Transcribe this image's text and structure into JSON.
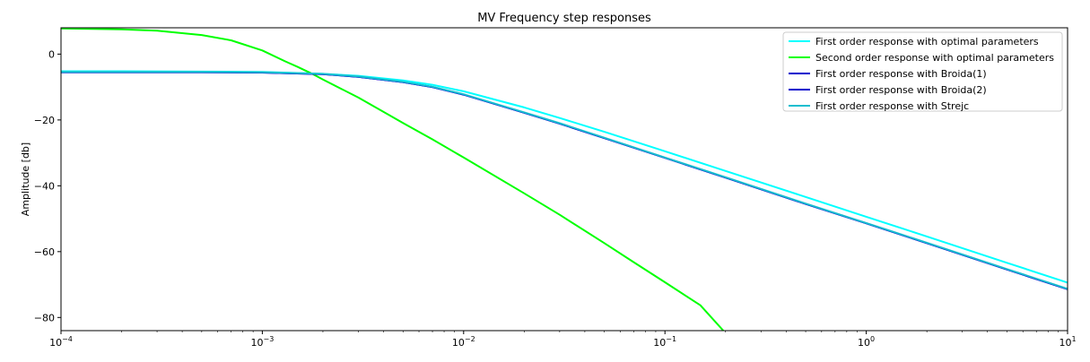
{
  "chart_data": {
    "type": "line",
    "title": "MV Frequency step responses",
    "xlabel": "",
    "ylabel": "Amplitude [db]",
    "xscale": "log",
    "xlim": [
      0.0001,
      10
    ],
    "ylim": [
      -84,
      8
    ],
    "xticks": [
      {
        "value": 0.0001,
        "base": "10",
        "exp": "−4"
      },
      {
        "value": 0.001,
        "base": "10",
        "exp": "−3"
      },
      {
        "value": 0.01,
        "base": "10",
        "exp": "−2"
      },
      {
        "value": 0.1,
        "base": "10",
        "exp": "−1"
      },
      {
        "value": 1,
        "base": "10",
        "exp": "0"
      },
      {
        "value": 10,
        "base": "10",
        "exp": "1"
      }
    ],
    "yticks": [
      {
        "value": 0,
        "label": "0"
      },
      {
        "value": -20,
        "label": "−20"
      },
      {
        "value": -40,
        "label": "−40"
      },
      {
        "value": -60,
        "label": "−60"
      },
      {
        "value": -80,
        "label": "−80"
      }
    ],
    "grid": false,
    "legend_position": "top-right",
    "series": [
      {
        "name": "First order response with optimal parameters",
        "color": "#00ffff",
        "x": [
          0.0001,
          0.0002,
          0.0005,
          0.001,
          0.002,
          0.003,
          0.005,
          0.007,
          0.01,
          0.02,
          0.03,
          0.05,
          0.1,
          0.2,
          0.5,
          1,
          2,
          5,
          10
        ],
        "y": [
          -5.2,
          -5.2,
          -5.3,
          -5.4,
          -6.0,
          -6.6,
          -8.0,
          -9.3,
          -11.3,
          -16.2,
          -19.4,
          -23.6,
          -29.5,
          -35.5,
          -43.4,
          -49.4,
          -55.4,
          -63.4,
          -69.4
        ]
      },
      {
        "name": "Second order response with optimal parameters",
        "color": "#00ff00",
        "x": [
          0.0001,
          0.0002,
          0.0003,
          0.0005,
          0.0007,
          0.001,
          0.0013,
          0.0015,
          0.0018,
          0.002,
          0.003,
          0.005,
          0.007,
          0.01,
          0.02,
          0.03,
          0.05,
          0.07,
          0.1,
          0.15,
          0.195
        ],
        "y": [
          7.8,
          7.5,
          7.1,
          5.8,
          4.2,
          1.1,
          -2.2,
          -3.9,
          -6.2,
          -7.7,
          -13.2,
          -20.9,
          -25.9,
          -31.4,
          -42.3,
          -48.8,
          -57.4,
          -63.2,
          -69.3,
          -76.3,
          -84
        ]
      },
      {
        "name": "First order response with Broida(1)",
        "color": "#0000cd",
        "x": [
          0.0001,
          0.0002,
          0.0005,
          0.001,
          0.002,
          0.003,
          0.005,
          0.007,
          0.01,
          0.02,
          0.03,
          0.05,
          0.1,
          0.2,
          0.5,
          1,
          2,
          5,
          10
        ],
        "y": [
          -5.5,
          -5.5,
          -5.5,
          -5.6,
          -6.1,
          -6.9,
          -8.5,
          -10.0,
          -12.3,
          -17.8,
          -21.1,
          -25.5,
          -31.5,
          -37.5,
          -45.5,
          -51.4,
          -57.4,
          -65.4,
          -71.4
        ]
      },
      {
        "name": "First order response with Broida(2)",
        "color": "#0000cd",
        "x": [
          0.0001,
          0.0002,
          0.0005,
          0.001,
          0.002,
          0.003,
          0.005,
          0.007,
          0.01,
          0.02,
          0.03,
          0.05,
          0.1,
          0.2,
          0.5,
          1,
          2,
          5,
          10
        ],
        "y": [
          -5.5,
          -5.5,
          -5.5,
          -5.6,
          -6.1,
          -6.9,
          -8.5,
          -10.0,
          -12.3,
          -17.8,
          -21.1,
          -25.5,
          -31.5,
          -37.5,
          -45.5,
          -51.4,
          -57.4,
          -65.4,
          -71.4
        ]
      },
      {
        "name": "First order response with Strejc",
        "color": "#17becf",
        "x": [
          0.0001,
          0.0002,
          0.0005,
          0.001,
          0.002,
          0.003,
          0.005,
          0.007,
          0.01,
          0.02,
          0.03,
          0.05,
          0.1,
          0.2,
          0.5,
          1,
          2,
          5,
          10
        ],
        "y": [
          -5.4,
          -5.4,
          -5.4,
          -5.5,
          -6.0,
          -6.8,
          -8.4,
          -9.9,
          -12.2,
          -17.7,
          -21.0,
          -25.4,
          -31.4,
          -37.4,
          -45.4,
          -51.3,
          -57.3,
          -65.3,
          -71.3
        ]
      }
    ]
  }
}
